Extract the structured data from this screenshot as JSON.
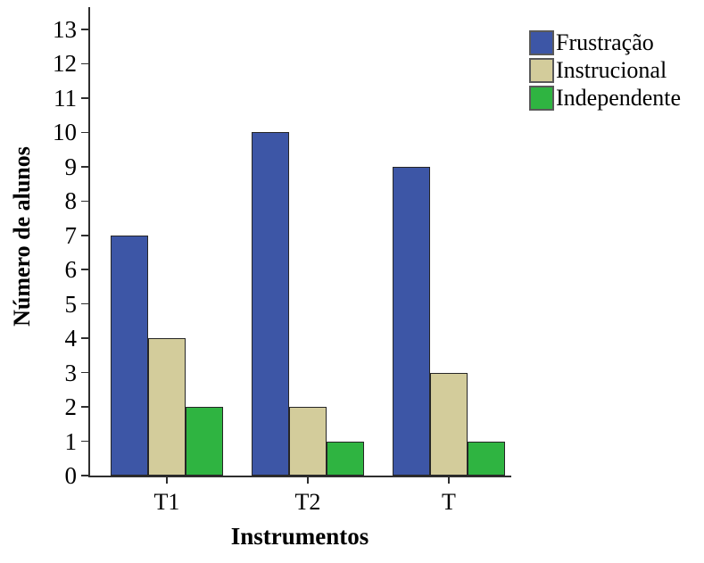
{
  "chart_data": {
    "type": "bar",
    "title": "",
    "xlabel": "Instrumentos",
    "ylabel": "Número de alunos",
    "categories": [
      "T1",
      "T2",
      "T"
    ],
    "series": [
      {
        "name": "Frustração",
        "color": "#3D56A6",
        "values": [
          7,
          10,
          9
        ]
      },
      {
        "name": "Instrucional",
        "color": "#D3CC9B",
        "values": [
          4,
          2,
          3
        ]
      },
      {
        "name": "Independente",
        "color": "#2FB441",
        "values": [
          2,
          1,
          1
        ]
      }
    ],
    "ylim": [
      0,
      13
    ],
    "ytick_step": 1,
    "ytick_labels": [
      "0",
      "1",
      "2",
      "3",
      "4",
      "5",
      "6",
      "7",
      "8",
      "9",
      "10",
      "11",
      "12",
      "13"
    ],
    "grid": false,
    "legend_position": "top-right",
    "legend_entries": [
      "Frustração",
      "Instrucional",
      "Independente"
    ]
  }
}
